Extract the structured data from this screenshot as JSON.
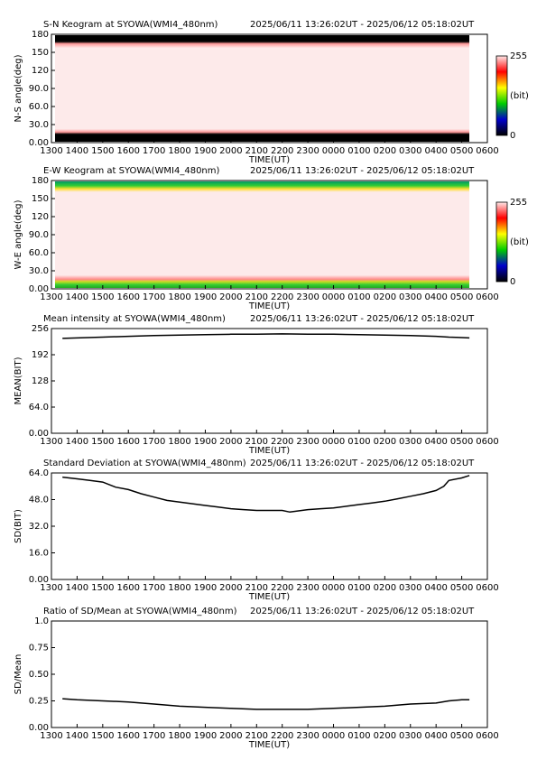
{
  "chart_data": [
    {
      "type": "heatmap",
      "title": "S-N Keogram at SYOWA(WMI4_480nm)",
      "subtitle": "2025/06/11 13:26:02UT - 2025/06/12 05:18:02UT",
      "xlabel": "TIME(UT)",
      "ylabel": "N-S angle(deg)",
      "xlim": [
        13,
        30
      ],
      "xticks": [
        {
          "value": 13,
          "label": "1300"
        },
        {
          "value": 14,
          "label": "1400"
        },
        {
          "value": 15,
          "label": "1500"
        },
        {
          "value": 16,
          "label": "1600"
        },
        {
          "value": 17,
          "label": "1700"
        },
        {
          "value": 18,
          "label": "1800"
        },
        {
          "value": 19,
          "label": "1900"
        },
        {
          "value": 20,
          "label": "2000"
        },
        {
          "value": 21,
          "label": "2100"
        },
        {
          "value": 22,
          "label": "2200"
        },
        {
          "value": 23,
          "label": "2300"
        },
        {
          "value": 24,
          "label": "0000"
        },
        {
          "value": 25,
          "label": "0100"
        },
        {
          "value": 26,
          "label": "0200"
        },
        {
          "value": 27,
          "label": "0300"
        },
        {
          "value": 28,
          "label": "0400"
        },
        {
          "value": 29,
          "label": "0500"
        },
        {
          "value": 30,
          "label": "0600"
        }
      ],
      "ylim": [
        0,
        180
      ],
      "yticks": [
        {
          "value": 0,
          "label": "0.00"
        },
        {
          "value": 30,
          "label": "30.0"
        },
        {
          "value": 60,
          "label": "60.0"
        },
        {
          "value": 90,
          "label": "90.0"
        },
        120,
        150,
        180
      ],
      "colorbar": {
        "lim": [
          0,
          255
        ],
        "ticks": [
          0,
          255
        ],
        "label": "(bit)"
      },
      "style": "sn"
    },
    {
      "type": "heatmap",
      "title": "E-W Keogram at SYOWA(WMI4_480nm)",
      "subtitle": "2025/06/11 13:26:02UT - 2025/06/12 05:18:02UT",
      "xlabel": "TIME(UT)",
      "ylabel": "W-E angle(deg)",
      "xlim": [
        13,
        30
      ],
      "xticks": [
        {
          "value": 13,
          "label": "1300"
        },
        {
          "value": 14,
          "label": "1400"
        },
        {
          "value": 15,
          "label": "1500"
        },
        {
          "value": 16,
          "label": "1600"
        },
        {
          "value": 17,
          "label": "1700"
        },
        {
          "value": 18,
          "label": "1800"
        },
        {
          "value": 19,
          "label": "1900"
        },
        {
          "value": 20,
          "label": "2000"
        },
        {
          "value": 21,
          "label": "2100"
        },
        {
          "value": 22,
          "label": "2200"
        },
        {
          "value": 23,
          "label": "2300"
        },
        {
          "value": 24,
          "label": "0000"
        },
        {
          "value": 25,
          "label": "0100"
        },
        {
          "value": 26,
          "label": "0200"
        },
        {
          "value": 27,
          "label": "0300"
        },
        {
          "value": 28,
          "label": "0400"
        },
        {
          "value": 29,
          "label": "0500"
        },
        {
          "value": 30,
          "label": "0600"
        }
      ],
      "ylim": [
        0,
        180
      ],
      "yticks": [
        {
          "value": 0,
          "label": "0.00"
        },
        {
          "value": 30,
          "label": "30.0"
        },
        {
          "value": 60,
          "label": "60.0"
        },
        {
          "value": 90,
          "label": "90.0"
        },
        120,
        150,
        180
      ],
      "colorbar": {
        "lim": [
          0,
          255
        ],
        "ticks": [
          0,
          255
        ],
        "label": "(bit)"
      },
      "style": "ew"
    },
    {
      "type": "line",
      "title": "Mean intensity at SYOWA(WMI4_480nm)",
      "subtitle": "2025/06/11 13:26:02UT - 2025/06/12 05:18:02UT",
      "xlabel": "TIME(UT)",
      "ylabel": "MEAN(BIT)",
      "xlim": [
        13,
        30
      ],
      "xticks": [
        {
          "value": 13,
          "label": "1300"
        },
        {
          "value": 14,
          "label": "1400"
        },
        {
          "value": 15,
          "label": "1500"
        },
        {
          "value": 16,
          "label": "1600"
        },
        {
          "value": 17,
          "label": "1700"
        },
        {
          "value": 18,
          "label": "1800"
        },
        {
          "value": 19,
          "label": "1900"
        },
        {
          "value": 20,
          "label": "2000"
        },
        {
          "value": 21,
          "label": "2100"
        },
        {
          "value": 22,
          "label": "2200"
        },
        {
          "value": 23,
          "label": "2300"
        },
        {
          "value": 24,
          "label": "0000"
        },
        {
          "value": 25,
          "label": "0100"
        },
        {
          "value": 26,
          "label": "0200"
        },
        {
          "value": 27,
          "label": "0300"
        },
        {
          "value": 28,
          "label": "0400"
        },
        {
          "value": 29,
          "label": "0500"
        },
        {
          "value": 30,
          "label": "0600"
        }
      ],
      "ylim": [
        0,
        256
      ],
      "yticks": [
        {
          "value": 0,
          "label": "0.00"
        },
        {
          "value": 64,
          "label": "64.0"
        },
        128,
        192,
        256
      ],
      "x": [
        13.43,
        14,
        15,
        16,
        17,
        18,
        19,
        20,
        21,
        22,
        23,
        24,
        25,
        26,
        27,
        28,
        28.5,
        29,
        29.3
      ],
      "values": [
        232,
        233,
        235,
        237,
        239,
        240,
        241,
        242,
        242,
        243,
        242,
        242,
        241,
        240,
        239,
        237,
        235,
        234,
        233
      ],
      "color": "#000000"
    },
    {
      "type": "line",
      "title": "Standard Deviation at SYOWA(WMI4_480nm)",
      "subtitle": "2025/06/11 13:26:02UT - 2025/06/12 05:18:02UT",
      "xlabel": "TIME(UT)",
      "ylabel": "SD(BIT)",
      "xlim": [
        13,
        30
      ],
      "xticks": [
        {
          "value": 13,
          "label": "1300"
        },
        {
          "value": 14,
          "label": "1400"
        },
        {
          "value": 15,
          "label": "1500"
        },
        {
          "value": 16,
          "label": "1600"
        },
        {
          "value": 17,
          "label": "1700"
        },
        {
          "value": 18,
          "label": "1800"
        },
        {
          "value": 19,
          "label": "1900"
        },
        {
          "value": 20,
          "label": "2000"
        },
        {
          "value": 21,
          "label": "2100"
        },
        {
          "value": 22,
          "label": "2200"
        },
        {
          "value": 23,
          "label": "2300"
        },
        {
          "value": 24,
          "label": "0000"
        },
        {
          "value": 25,
          "label": "0100"
        },
        {
          "value": 26,
          "label": "0200"
        },
        {
          "value": 27,
          "label": "0300"
        },
        {
          "value": 28,
          "label": "0400"
        },
        {
          "value": 29,
          "label": "0500"
        },
        {
          "value": 30,
          "label": "0600"
        }
      ],
      "ylim": [
        0,
        64
      ],
      "yticks": [
        {
          "value": 0,
          "label": "0.00"
        },
        {
          "value": 16,
          "label": "16.0"
        },
        {
          "value": 32,
          "label": "32.0"
        },
        {
          "value": 48,
          "label": "48.0"
        },
        {
          "value": 64,
          "label": "64.0"
        }
      ],
      "x": [
        13.43,
        14,
        14.5,
        15,
        15.5,
        16,
        16.5,
        17,
        17.5,
        18,
        18.5,
        19,
        19.5,
        20,
        20.5,
        21,
        21.5,
        22,
        22.3,
        23,
        23.5,
        24,
        24.5,
        25,
        25.5,
        26,
        26.5,
        27,
        27.5,
        28,
        28.3,
        28.5,
        29,
        29.3
      ],
      "values": [
        61.5,
        60.5,
        59.5,
        58.5,
        55.5,
        54,
        51.5,
        49.5,
        47.5,
        46.5,
        45.5,
        44.5,
        43.5,
        42.5,
        42,
        41.5,
        41.5,
        41.5,
        40.5,
        42,
        42.5,
        43,
        44,
        45,
        46,
        47,
        48.5,
        50,
        51.5,
        53.5,
        56,
        59.5,
        61,
        62.5
      ],
      "color": "#000000"
    },
    {
      "type": "line",
      "title": "Ratio of SD/Mean at SYOWA(WMI4_480nm)",
      "subtitle": "2025/06/11 13:26:02UT - 2025/06/12 05:18:02UT",
      "xlabel": "TIME(UT)",
      "ylabel": "SD/Mean",
      "xlim": [
        13,
        30
      ],
      "xticks": [
        {
          "value": 13,
          "label": "1300"
        },
        {
          "value": 14,
          "label": "1400"
        },
        {
          "value": 15,
          "label": "1500"
        },
        {
          "value": 16,
          "label": "1600"
        },
        {
          "value": 17,
          "label": "1700"
        },
        {
          "value": 18,
          "label": "1800"
        },
        {
          "value": 19,
          "label": "1900"
        },
        {
          "value": 20,
          "label": "2000"
        },
        {
          "value": 21,
          "label": "2100"
        },
        {
          "value": 22,
          "label": "2200"
        },
        {
          "value": 23,
          "label": "2300"
        },
        {
          "value": 24,
          "label": "0000"
        },
        {
          "value": 25,
          "label": "0100"
        },
        {
          "value": 26,
          "label": "0200"
        },
        {
          "value": 27,
          "label": "0300"
        },
        {
          "value": 28,
          "label": "0400"
        },
        {
          "value": 29,
          "label": "0500"
        },
        {
          "value": 30,
          "label": "0600"
        }
      ],
      "ylim": [
        0,
        1
      ],
      "yticks": [
        {
          "value": 0,
          "label": "0.00"
        },
        0.25,
        {
          "value": 0.5,
          "label": "0.50"
        },
        0.75,
        {
          "value": 1,
          "label": "1.0"
        }
      ],
      "x": [
        13.43,
        14,
        15,
        16,
        17,
        18,
        19,
        20,
        21,
        22,
        23,
        24,
        25,
        26,
        27,
        28,
        28.5,
        29,
        29.3
      ],
      "values": [
        0.27,
        0.26,
        0.25,
        0.24,
        0.22,
        0.2,
        0.19,
        0.18,
        0.17,
        0.17,
        0.17,
        0.18,
        0.19,
        0.2,
        0.22,
        0.23,
        0.25,
        0.26,
        0.26
      ],
      "color": "#000000"
    }
  ]
}
